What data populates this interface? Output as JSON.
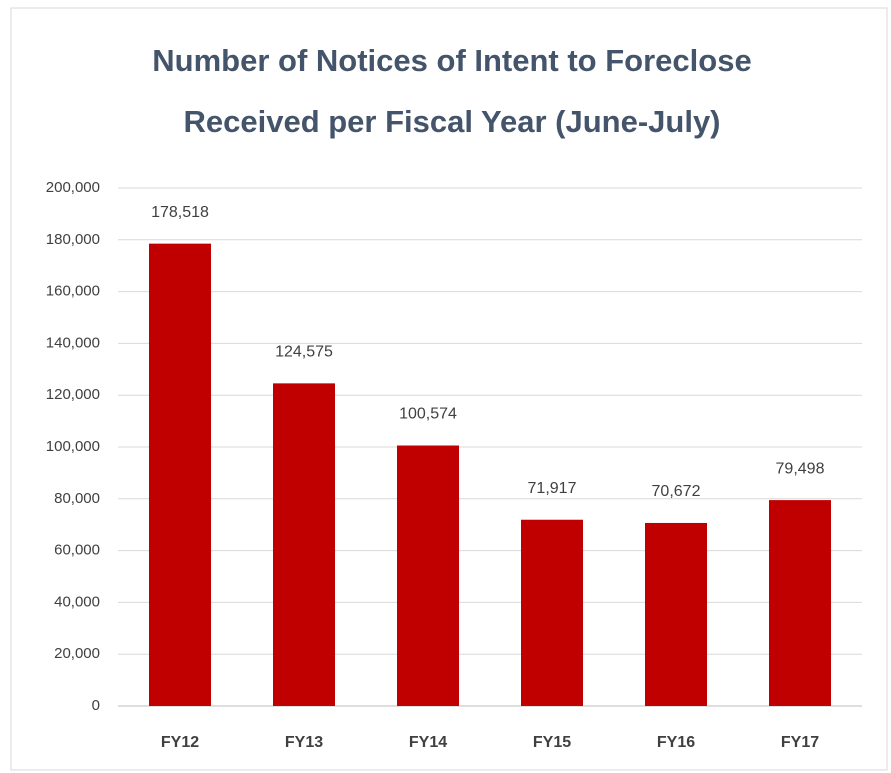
{
  "chart_data": {
    "type": "bar",
    "title": [
      "Number of Notices of Intent to Foreclose",
      "Received per Fiscal Year (June-July)"
    ],
    "categories": [
      "FY12",
      "FY13",
      "FY14",
      "FY15",
      "FY16",
      "FY17"
    ],
    "values": [
      178518,
      124575,
      100574,
      71917,
      70672,
      79498
    ],
    "value_labels": [
      "178,518",
      "124,575",
      "100,574",
      "71,917",
      "70,672",
      "79,498"
    ],
    "color": "#c00000",
    "ylim": [
      0,
      200000
    ],
    "yticks": [
      0,
      {
        "value": 20000,
        "label": "20,000"
      },
      {
        "value": 40000,
        "label": "40,000"
      },
      {
        "value": 60000,
        "label": "60,000"
      },
      {
        "value": 80000,
        "label": "80,000"
      },
      {
        "value": 100000,
        "label": "100,000"
      },
      {
        "value": 120000,
        "label": "120,000"
      },
      {
        "value": 140000,
        "label": "140,000"
      },
      {
        "value": 160000,
        "label": "160,000"
      },
      {
        "value": 180000,
        "label": "180,000"
      },
      {
        "value": 200000,
        "label": "200,000"
      }
    ],
    "grid": true
  }
}
